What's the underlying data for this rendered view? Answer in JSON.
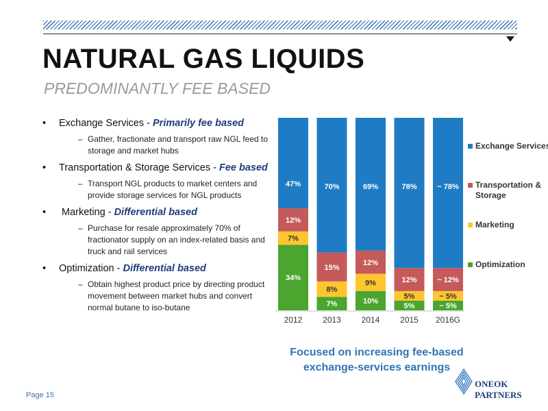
{
  "header": {
    "title": "NATURAL GAS LIQUIDS",
    "subtitle": "PREDOMINANTLY FEE BASED"
  },
  "bullets": [
    {
      "label": "Exchange Services - ",
      "accent": "Primarily fee based",
      "sub": "Gather, fractionate and transport raw NGL feed to storage and market hubs"
    },
    {
      "label": "Transportation & Storage Services - ",
      "accent": "Fee based",
      "sub": "Transport NGL products to market centers and provide storage services for NGL products"
    },
    {
      "label": "Marketing - ",
      "accent": "Differential based",
      "sub": "Purchase for resale approximately 70% of fractionator supply on an index-related basis and truck and rail services"
    },
    {
      "label": "Optimization - ",
      "accent": "Differential based",
      "sub": "Obtain highest product price by directing product movement between market hubs and convert normal butane to iso-butane"
    }
  ],
  "tagline": {
    "line1": "Focused on increasing fee-based",
    "line2": "exchange-services earnings"
  },
  "footer": {
    "page": "Page 15"
  },
  "logo": {
    "line1": "ONEOK",
    "line2": "PARTNERS"
  },
  "colors": {
    "exchange": "#1f7cc4",
    "transport": "#c55a5a",
    "marketing": "#fec52e",
    "optimization": "#4ba52f",
    "accent": "#1f3d7a"
  },
  "chart_data": {
    "type": "bar",
    "stacked": true,
    "percent": true,
    "categories": [
      "2012",
      "2013",
      "2014",
      "2015",
      "2016G"
    ],
    "series": [
      {
        "name": "Optimization",
        "color": "#4ba52f",
        "values": [
          34,
          7,
          10,
          5,
          5
        ],
        "labels": [
          "34%",
          "7%",
          "10%",
          "5%",
          "~ 5%"
        ]
      },
      {
        "name": "Marketing",
        "color": "#fec52e",
        "values": [
          7,
          8,
          9,
          5,
          5
        ],
        "labels": [
          "7%",
          "8%",
          "9%",
          "5%",
          "~ 5%"
        ]
      },
      {
        "name": "Transportation & Storage",
        "color": "#c55a5a",
        "values": [
          12,
          15,
          12,
          12,
          12
        ],
        "labels": [
          "12%",
          "15%",
          "12%",
          "12%",
          "~ 12%"
        ]
      },
      {
        "name": "Exchange Services",
        "color": "#1f7cc4",
        "values": [
          47,
          70,
          69,
          78,
          78
        ],
        "labels": [
          "47%",
          "70%",
          "69%",
          "78%",
          "~ 78%"
        ]
      }
    ],
    "legend_order": [
      "Exchange Services",
      "Transportation & Storage",
      "Marketing",
      "Optimization"
    ],
    "legend_position": "right",
    "ylim": [
      0,
      100
    ]
  }
}
